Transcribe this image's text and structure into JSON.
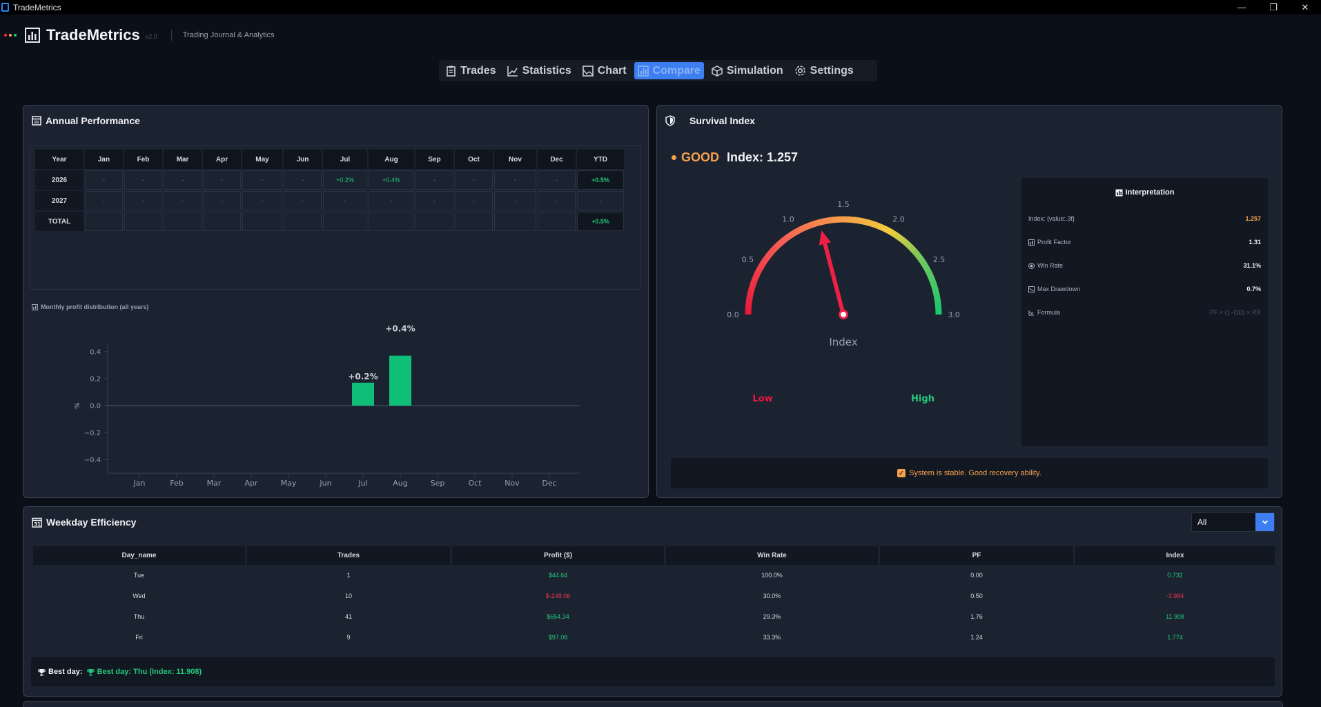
{
  "window": {
    "title": "TradeMetrics",
    "minimize": "—",
    "restore": "❐",
    "close": "✕"
  },
  "header": {
    "brand": "TradeMetrics",
    "version": "v2.0",
    "subtitle": "Trading Journal & Analytics"
  },
  "colors": {
    "accent": "#3d7ff2",
    "positive": "#22c97a",
    "negative": "#f0324d",
    "warning": "#f7a04b",
    "dot_colors": [
      "#f0324d",
      "#f7a04b",
      "#22c97a"
    ]
  },
  "nav": {
    "tabs": [
      {
        "label": "Trades",
        "icon": "clipboard-icon",
        "active": false
      },
      {
        "label": "Statistics",
        "icon": "chart-line-icon",
        "active": false
      },
      {
        "label": "Chart",
        "icon": "chart-area-icon",
        "active": false
      },
      {
        "label": "Compare",
        "icon": "bar-chart-icon",
        "active": true
      },
      {
        "label": "Simulation",
        "icon": "cube-icon",
        "active": false
      },
      {
        "label": "Settings",
        "icon": "gear-icon",
        "active": false
      }
    ]
  },
  "annual": {
    "title": "Annual Performance",
    "columns": [
      "Year",
      "Jan",
      "Feb",
      "Mar",
      "Apr",
      "May",
      "Jun",
      "Jul",
      "Aug",
      "Sep",
      "Oct",
      "Nov",
      "Dec",
      "YTD"
    ],
    "rows": [
      {
        "year": "2026",
        "cells": [
          "-",
          "-",
          "-",
          "-",
          "-",
          "-",
          "+0.2%",
          "+0.4%",
          "-",
          "-",
          "-",
          "-"
        ],
        "ytd": "+0.5%"
      },
      {
        "year": "2027",
        "cells": [
          "-",
          "-",
          "-",
          "-",
          "-",
          "-",
          "-",
          "-",
          "-",
          "-",
          "-",
          "-"
        ],
        "ytd": "-"
      },
      {
        "year": "TOTAL",
        "cells": [
          "",
          "",
          "",
          "",
          "",
          "",
          "",
          "",
          "",
          "",
          "",
          ""
        ],
        "ytd": "+0.5%"
      }
    ],
    "dist_label": "Monthly profit distribution (all years)"
  },
  "chart_data": {
    "type": "bar",
    "categories": [
      "Jan",
      "Feb",
      "Mar",
      "Apr",
      "May",
      "Jun",
      "Jul",
      "Aug",
      "Sep",
      "Oct",
      "Nov",
      "Dec"
    ],
    "values": [
      0,
      0,
      0,
      0,
      0,
      0,
      0.17,
      0.37,
      0,
      0,
      0,
      0
    ],
    "data_labels": {
      "Jul": "+0.2%",
      "Aug": "+0.4%"
    },
    "ylabel": "%",
    "ylim": [
      -0.5,
      0.45
    ],
    "yticks": [
      0.4,
      0.2,
      0.0,
      -0.2,
      -0.4
    ],
    "ytick_labels": [
      "0.4",
      "0.2",
      "0.0",
      "−0.2",
      "−0.4"
    ],
    "bar_color": "#0fbf78"
  },
  "survival": {
    "title": "Survival Index",
    "status": "GOOD",
    "index_text": "Index: 1.257",
    "value": 1.257,
    "gauge": {
      "min": 0,
      "max": 3,
      "ticks": [
        0.0,
        0.5,
        1.0,
        1.5,
        2.0,
        2.5,
        3.0
      ],
      "tick_labels": [
        "0.0",
        "0.5",
        "1.0",
        "1.5",
        "2.0",
        "2.5",
        "3.0"
      ],
      "label": "Index",
      "low_label": "Low",
      "high_label": "High"
    },
    "interpretation": {
      "title": "Interpretation",
      "rows": [
        {
          "label": "Index: {value:.3f}",
          "value": "1.257",
          "icon": "",
          "color": "#f7a04b"
        },
        {
          "label": "Profit Factor",
          "value": "1.31",
          "icon": "bar-chart-icon",
          "color": "#f0f2f5"
        },
        {
          "label": "Win Rate",
          "value": "31.1%",
          "icon": "target-icon",
          "color": "#f0f2f5"
        },
        {
          "label": "Max Drawdown",
          "value": "0.7%",
          "icon": "trend-down-icon",
          "color": "#f0f2f5"
        },
        {
          "label": "Formula",
          "value": "PF × (1−DD) × RR",
          "icon": "formula-icon",
          "color": "#4b5565"
        }
      ]
    },
    "message": "System is stable. Good recovery ability."
  },
  "weekday": {
    "title": "Weekday Efficiency",
    "filter_value": "All",
    "columns": [
      "Day_name",
      "Trades",
      "Profit ($)",
      "Win Rate",
      "PF",
      "Index"
    ],
    "rows": [
      {
        "day": "Tue",
        "trades": "1",
        "profit": "$44.64",
        "winrate": "100.0%",
        "pf": "0.00",
        "index": "0.732",
        "pos": true
      },
      {
        "day": "Wed",
        "trades": "10",
        "profit": "$-248.06",
        "winrate": "30.0%",
        "pf": "0.50",
        "index": "-3.984",
        "pos": false
      },
      {
        "day": "Thu",
        "trades": "41",
        "profit": "$654.34",
        "winrate": "29.3%",
        "pf": "1.76",
        "index": "11.908",
        "pos": true
      },
      {
        "day": "Fri",
        "trades": "9",
        "profit": "$97.08",
        "winrate": "33.3%",
        "pf": "1.24",
        "index": "1.774",
        "pos": true
      }
    ],
    "best_key": "Best day:",
    "best_value": "Best day: Thu (Index: 11.908)"
  }
}
